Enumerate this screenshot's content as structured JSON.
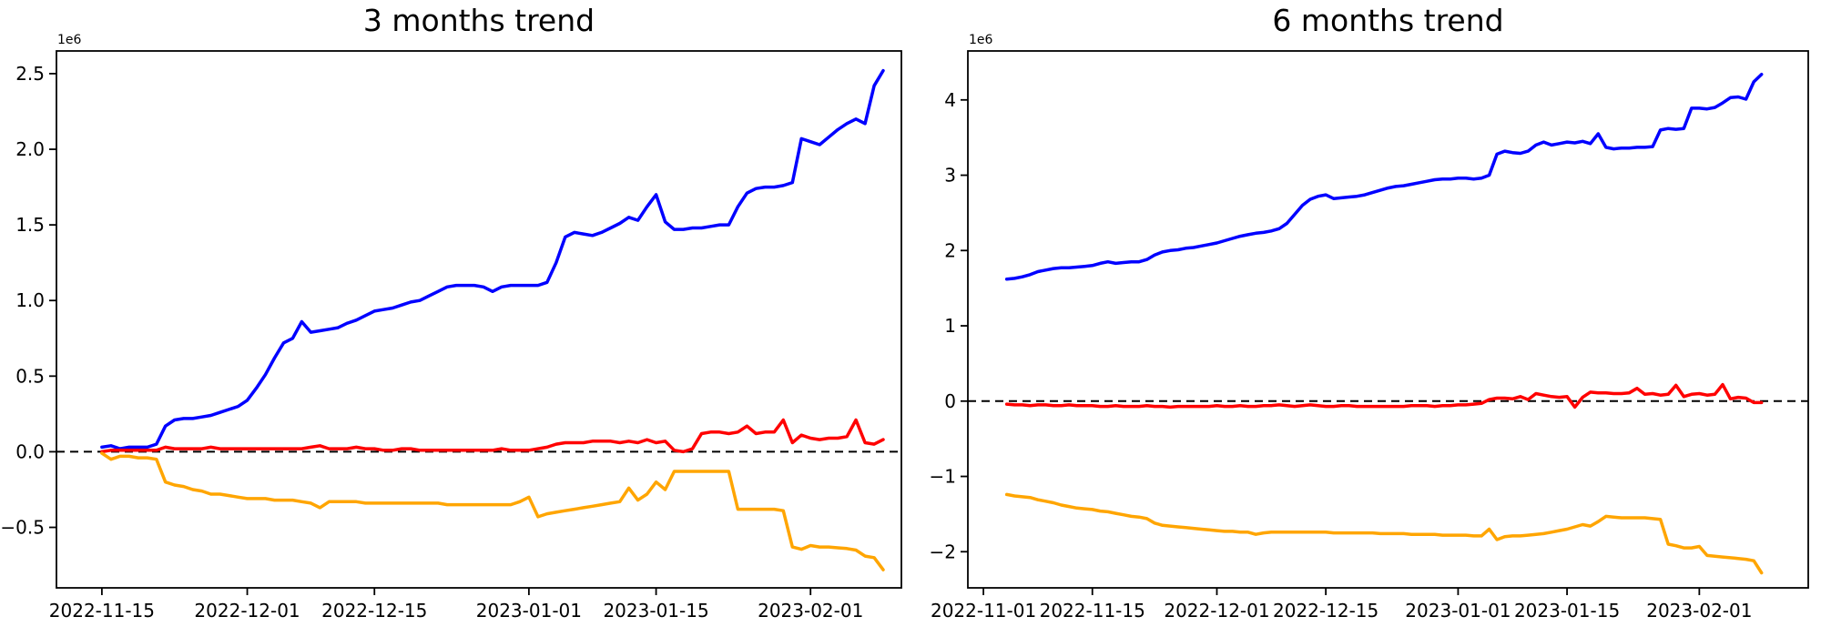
{
  "figure": {
    "background": "#ffffff",
    "text_color": "#000000"
  },
  "chart_data": [
    {
      "type": "line",
      "title": "3 months trend",
      "y_offset_label": "1e6",
      "y_unit_multiplier": 1000000,
      "grid": false,
      "legend": "none",
      "zero_reference_line": {
        "style": "dashed",
        "color": "#000000",
        "y": 0
      },
      "xlim": [
        "2022-11-10",
        "2023-02-11"
      ],
      "ylim": [
        -0.9,
        2.65
      ],
      "x_ticks": [
        {
          "date": "2022-11-15",
          "label": "2022-11-15"
        },
        {
          "date": "2022-12-01",
          "label": "2022-12-01"
        },
        {
          "date": "2022-12-15",
          "label": "2022-12-15"
        },
        {
          "date": "2023-01-01",
          "label": "2023-01-01"
        },
        {
          "date": "2023-01-15",
          "label": "2023-01-15"
        },
        {
          "date": "2023-02-01",
          "label": "2023-02-01"
        }
      ],
      "y_ticks": [
        {
          "value": 2.5,
          "label": "2.5"
        },
        {
          "value": 2.0,
          "label": "2.0"
        },
        {
          "value": 1.5,
          "label": "1.5"
        },
        {
          "value": 1.0,
          "label": "1.0"
        },
        {
          "value": 0.5,
          "label": "0.5"
        },
        {
          "value": 0.0,
          "label": "0.0"
        },
        {
          "value": -0.5,
          "label": "−0.5"
        }
      ],
      "dates": [
        "2022-11-15",
        "2022-11-16",
        "2022-11-17",
        "2022-11-18",
        "2022-11-19",
        "2022-11-20",
        "2022-11-21",
        "2022-11-22",
        "2022-11-23",
        "2022-11-24",
        "2022-11-25",
        "2022-11-26",
        "2022-11-27",
        "2022-11-28",
        "2022-11-29",
        "2022-11-30",
        "2022-12-01",
        "2022-12-02",
        "2022-12-03",
        "2022-12-04",
        "2022-12-05",
        "2022-12-06",
        "2022-12-07",
        "2022-12-08",
        "2022-12-09",
        "2022-12-10",
        "2022-12-11",
        "2022-12-12",
        "2022-12-13",
        "2022-12-14",
        "2022-12-15",
        "2022-12-16",
        "2022-12-17",
        "2022-12-18",
        "2022-12-19",
        "2022-12-20",
        "2022-12-21",
        "2022-12-22",
        "2022-12-23",
        "2022-12-24",
        "2022-12-25",
        "2022-12-26",
        "2022-12-27",
        "2022-12-28",
        "2022-12-29",
        "2022-12-30",
        "2022-12-31",
        "2023-01-01",
        "2023-01-02",
        "2023-01-03",
        "2023-01-04",
        "2023-01-05",
        "2023-01-06",
        "2023-01-07",
        "2023-01-08",
        "2023-01-09",
        "2023-01-10",
        "2023-01-11",
        "2023-01-12",
        "2023-01-13",
        "2023-01-14",
        "2023-01-15",
        "2023-01-16",
        "2023-01-17",
        "2023-01-18",
        "2023-01-19",
        "2023-01-20",
        "2023-01-21",
        "2023-01-22",
        "2023-01-23",
        "2023-01-24",
        "2023-01-25",
        "2023-01-26",
        "2023-01-27",
        "2023-01-28",
        "2023-01-29",
        "2023-01-30",
        "2023-01-31",
        "2023-02-01",
        "2023-02-02",
        "2023-02-03",
        "2023-02-04",
        "2023-02-05",
        "2023-02-06",
        "2023-02-07",
        "2023-02-08",
        "2023-02-09"
      ],
      "series": [
        {
          "name": "blue",
          "color": "#0000ff",
          "values": [
            0.03,
            0.04,
            0.02,
            0.03,
            0.03,
            0.03,
            0.05,
            0.17,
            0.21,
            0.22,
            0.22,
            0.23,
            0.24,
            0.26,
            0.28,
            0.3,
            0.34,
            0.42,
            0.51,
            0.62,
            0.72,
            0.75,
            0.86,
            0.79,
            0.8,
            0.81,
            0.82,
            0.85,
            0.87,
            0.9,
            0.93,
            0.94,
            0.95,
            0.97,
            0.99,
            1.0,
            1.03,
            1.06,
            1.09,
            1.1,
            1.1,
            1.1,
            1.09,
            1.06,
            1.09,
            1.1,
            1.1,
            1.1,
            1.1,
            1.12,
            1.25,
            1.42,
            1.45,
            1.44,
            1.43,
            1.45,
            1.48,
            1.51,
            1.55,
            1.53,
            1.62,
            1.7,
            1.52,
            1.47,
            1.47,
            1.48,
            1.48,
            1.49,
            1.5,
            1.5,
            1.62,
            1.71,
            1.74,
            1.75,
            1.75,
            1.76,
            1.78,
            2.07,
            2.05,
            2.03,
            2.08,
            2.13,
            2.17,
            2.2,
            2.17,
            2.42,
            2.52
          ]
        },
        {
          "name": "red",
          "color": "#ff0000",
          "values": [
            0.0,
            0.01,
            0.01,
            0.01,
            0.01,
            0.01,
            0.01,
            0.03,
            0.02,
            0.02,
            0.02,
            0.02,
            0.03,
            0.02,
            0.02,
            0.02,
            0.02,
            0.02,
            0.02,
            0.02,
            0.02,
            0.02,
            0.02,
            0.03,
            0.04,
            0.02,
            0.02,
            0.02,
            0.03,
            0.02,
            0.02,
            0.01,
            0.01,
            0.02,
            0.02,
            0.01,
            0.01,
            0.01,
            0.01,
            0.01,
            0.01,
            0.01,
            0.01,
            0.01,
            0.02,
            0.01,
            0.01,
            0.01,
            0.02,
            0.03,
            0.05,
            0.06,
            0.06,
            0.06,
            0.07,
            0.07,
            0.07,
            0.06,
            0.07,
            0.06,
            0.08,
            0.06,
            0.07,
            0.01,
            0.0,
            0.02,
            0.12,
            0.13,
            0.13,
            0.12,
            0.13,
            0.17,
            0.12,
            0.13,
            0.13,
            0.21,
            0.06,
            0.11,
            0.09,
            0.08,
            0.09,
            0.09,
            0.1,
            0.21,
            0.06,
            0.05,
            0.08
          ]
        },
        {
          "name": "orange",
          "color": "#ffa500",
          "values": [
            -0.01,
            -0.05,
            -0.03,
            -0.03,
            -0.04,
            -0.04,
            -0.05,
            -0.2,
            -0.22,
            -0.23,
            -0.25,
            -0.26,
            -0.28,
            -0.28,
            -0.29,
            -0.3,
            -0.31,
            -0.31,
            -0.31,
            -0.32,
            -0.32,
            -0.32,
            -0.33,
            -0.34,
            -0.37,
            -0.33,
            -0.33,
            -0.33,
            -0.33,
            -0.34,
            -0.34,
            -0.34,
            -0.34,
            -0.34,
            -0.34,
            -0.34,
            -0.34,
            -0.34,
            -0.35,
            -0.35,
            -0.35,
            -0.35,
            -0.35,
            -0.35,
            -0.35,
            -0.35,
            -0.33,
            -0.3,
            -0.43,
            -0.41,
            -0.4,
            -0.39,
            -0.38,
            -0.37,
            -0.36,
            -0.35,
            -0.34,
            -0.33,
            -0.24,
            -0.32,
            -0.28,
            -0.2,
            -0.25,
            -0.13,
            -0.13,
            -0.13,
            -0.13,
            -0.13,
            -0.13,
            -0.13,
            -0.38,
            -0.38,
            -0.38,
            -0.38,
            -0.38,
            -0.39,
            -0.63,
            -0.645,
            -0.62,
            -0.63,
            -0.63,
            -0.635,
            -0.64,
            -0.65,
            -0.69,
            -0.7,
            -0.78
          ]
        }
      ]
    },
    {
      "type": "line",
      "title": "6 months trend",
      "y_offset_label": "1e6",
      "y_unit_multiplier": 1000000,
      "grid": false,
      "legend": "none",
      "zero_reference_line": {
        "style": "dashed",
        "color": "#000000",
        "y": 0
      },
      "xlim": [
        "2022-10-30",
        "2023-02-15"
      ],
      "ylim": [
        -2.48,
        4.65
      ],
      "x_ticks": [
        {
          "date": "2022-11-01",
          "label": "2022-11-01"
        },
        {
          "date": "2022-11-15",
          "label": "2022-11-15"
        },
        {
          "date": "2022-12-01",
          "label": "2022-12-01"
        },
        {
          "date": "2022-12-15",
          "label": "2022-12-15"
        },
        {
          "date": "2023-01-01",
          "label": "2023-01-01"
        },
        {
          "date": "2023-01-15",
          "label": "2023-01-15"
        },
        {
          "date": "2023-02-01",
          "label": "2023-02-01"
        }
      ],
      "y_ticks": [
        {
          "value": 4,
          "label": "4"
        },
        {
          "value": 3,
          "label": "3"
        },
        {
          "value": 2,
          "label": "2"
        },
        {
          "value": 1,
          "label": "1"
        },
        {
          "value": 0,
          "label": "0"
        },
        {
          "value": -1,
          "label": "−1"
        },
        {
          "value": -2,
          "label": "−2"
        }
      ],
      "dates": [
        "2022-11-04",
        "2022-11-05",
        "2022-11-06",
        "2022-11-07",
        "2022-11-08",
        "2022-11-09",
        "2022-11-10",
        "2022-11-11",
        "2022-11-12",
        "2022-11-13",
        "2022-11-14",
        "2022-11-15",
        "2022-11-16",
        "2022-11-17",
        "2022-11-18",
        "2022-11-19",
        "2022-11-20",
        "2022-11-21",
        "2022-11-22",
        "2022-11-23",
        "2022-11-24",
        "2022-11-25",
        "2022-11-26",
        "2022-11-27",
        "2022-11-28",
        "2022-11-29",
        "2022-11-30",
        "2022-12-01",
        "2022-12-02",
        "2022-12-03",
        "2022-12-04",
        "2022-12-05",
        "2022-12-06",
        "2022-12-07",
        "2022-12-08",
        "2022-12-09",
        "2022-12-10",
        "2022-12-11",
        "2022-12-12",
        "2022-12-13",
        "2022-12-14",
        "2022-12-15",
        "2022-12-16",
        "2022-12-17",
        "2022-12-18",
        "2022-12-19",
        "2022-12-20",
        "2022-12-21",
        "2022-12-22",
        "2022-12-23",
        "2022-12-24",
        "2022-12-25",
        "2022-12-26",
        "2022-12-27",
        "2022-12-28",
        "2022-12-29",
        "2022-12-30",
        "2022-12-31",
        "2023-01-01",
        "2023-01-02",
        "2023-01-03",
        "2023-01-04",
        "2023-01-05",
        "2023-01-06",
        "2023-01-07",
        "2023-01-08",
        "2023-01-09",
        "2023-01-10",
        "2023-01-11",
        "2023-01-12",
        "2023-01-13",
        "2023-01-14",
        "2023-01-15",
        "2023-01-16",
        "2023-01-17",
        "2023-01-18",
        "2023-01-19",
        "2023-01-20",
        "2023-01-21",
        "2023-01-22",
        "2023-01-23",
        "2023-01-24",
        "2023-01-25",
        "2023-01-26",
        "2023-01-27",
        "2023-01-28",
        "2023-01-29",
        "2023-01-30",
        "2023-01-31",
        "2023-02-01",
        "2023-02-02",
        "2023-02-03",
        "2023-02-04",
        "2023-02-05",
        "2023-02-06",
        "2023-02-07",
        "2023-02-08",
        "2023-02-09"
      ],
      "series": [
        {
          "name": "blue",
          "color": "#0000ff",
          "values": [
            1.62,
            1.63,
            1.65,
            1.68,
            1.72,
            1.74,
            1.76,
            1.77,
            1.77,
            1.78,
            1.79,
            1.8,
            1.83,
            1.85,
            1.83,
            1.84,
            1.85,
            1.85,
            1.88,
            1.94,
            1.98,
            2.0,
            2.01,
            2.03,
            2.04,
            2.06,
            2.08,
            2.1,
            2.13,
            2.16,
            2.19,
            2.21,
            2.23,
            2.24,
            2.26,
            2.29,
            2.36,
            2.48,
            2.6,
            2.68,
            2.72,
            2.74,
            2.69,
            2.7,
            2.71,
            2.72,
            2.74,
            2.77,
            2.8,
            2.83,
            2.85,
            2.86,
            2.88,
            2.9,
            2.92,
            2.94,
            2.95,
            2.95,
            2.96,
            2.96,
            2.95,
            2.96,
            3.0,
            3.28,
            3.32,
            3.3,
            3.29,
            3.32,
            3.4,
            3.44,
            3.4,
            3.42,
            3.44,
            3.43,
            3.45,
            3.42,
            3.55,
            3.37,
            3.35,
            3.36,
            3.36,
            3.37,
            3.37,
            3.38,
            3.6,
            3.62,
            3.61,
            3.62,
            3.89,
            3.89,
            3.88,
            3.9,
            3.96,
            4.03,
            4.04,
            4.01,
            4.24,
            4.34
          ]
        },
        {
          "name": "red",
          "color": "#ff0000",
          "values": [
            -0.04,
            -0.05,
            -0.05,
            -0.06,
            -0.05,
            -0.05,
            -0.06,
            -0.06,
            -0.05,
            -0.06,
            -0.06,
            -0.06,
            -0.07,
            -0.07,
            -0.06,
            -0.07,
            -0.07,
            -0.07,
            -0.06,
            -0.07,
            -0.07,
            -0.08,
            -0.07,
            -0.07,
            -0.07,
            -0.07,
            -0.07,
            -0.06,
            -0.07,
            -0.07,
            -0.06,
            -0.07,
            -0.07,
            -0.06,
            -0.06,
            -0.05,
            -0.06,
            -0.07,
            -0.06,
            -0.05,
            -0.06,
            -0.07,
            -0.07,
            -0.06,
            -0.06,
            -0.07,
            -0.07,
            -0.07,
            -0.07,
            -0.07,
            -0.07,
            -0.07,
            -0.06,
            -0.06,
            -0.06,
            -0.07,
            -0.06,
            -0.06,
            -0.05,
            -0.05,
            -0.04,
            -0.03,
            0.02,
            0.04,
            0.04,
            0.03,
            0.06,
            0.02,
            0.1,
            0.08,
            0.06,
            0.05,
            0.06,
            -0.08,
            0.05,
            0.12,
            0.11,
            0.11,
            0.1,
            0.1,
            0.11,
            0.17,
            0.09,
            0.1,
            0.08,
            0.09,
            0.21,
            0.06,
            0.09,
            0.1,
            0.08,
            0.09,
            0.22,
            0.03,
            0.05,
            0.04,
            -0.02,
            -0.02
          ]
        },
        {
          "name": "orange",
          "color": "#ffa500",
          "values": [
            -1.24,
            -1.26,
            -1.27,
            -1.28,
            -1.31,
            -1.33,
            -1.35,
            -1.38,
            -1.4,
            -1.42,
            -1.43,
            -1.44,
            -1.46,
            -1.47,
            -1.49,
            -1.51,
            -1.53,
            -1.54,
            -1.56,
            -1.62,
            -1.65,
            -1.66,
            -1.67,
            -1.68,
            -1.69,
            -1.7,
            -1.71,
            -1.72,
            -1.73,
            -1.73,
            -1.74,
            -1.74,
            -1.77,
            -1.75,
            -1.74,
            -1.74,
            -1.74,
            -1.74,
            -1.74,
            -1.74,
            -1.74,
            -1.74,
            -1.75,
            -1.75,
            -1.75,
            -1.75,
            -1.75,
            -1.75,
            -1.76,
            -1.76,
            -1.76,
            -1.76,
            -1.77,
            -1.77,
            -1.77,
            -1.77,
            -1.78,
            -1.78,
            -1.78,
            -1.78,
            -1.79,
            -1.79,
            -1.7,
            -1.84,
            -1.8,
            -1.79,
            -1.79,
            -1.78,
            -1.77,
            -1.76,
            -1.74,
            -1.72,
            -1.7,
            -1.67,
            -1.64,
            -1.66,
            -1.6,
            -1.53,
            -1.54,
            -1.55,
            -1.55,
            -1.55,
            -1.55,
            -1.56,
            -1.57,
            -1.9,
            -1.92,
            -1.95,
            -1.95,
            -1.93,
            -2.05,
            -2.06,
            -2.07,
            -2.08,
            -2.09,
            -2.1,
            -2.12,
            -2.28
          ]
        }
      ]
    }
  ]
}
